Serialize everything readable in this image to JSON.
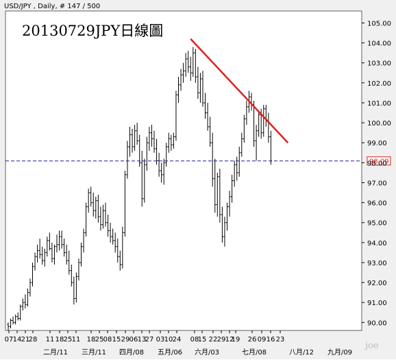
{
  "header": {
    "symbol_info": "USD/JPY  , Daily, # 147 / 500"
  },
  "chart_data": {
    "type": "ohlc",
    "title": "20130729JPY日線圖",
    "xlabel": "",
    "ylabel": "",
    "ylim": [
      89.6,
      105.6
    ],
    "y_ticks": [
      90.0,
      91.0,
      92.0,
      93.0,
      94.0,
      95.0,
      96.0,
      97.0,
      98.0,
      99.0,
      100.0,
      101.0,
      102.0,
      103.0,
      104.0,
      105.0
    ],
    "y_tick_labels": [
      "90.00",
      "91.00",
      "92.00",
      "93.00",
      "94.00",
      "95.00",
      "96.00",
      "97.00",
      "98.00",
      "99.00",
      "100.00",
      "101.00",
      "102.00",
      "103.00",
      "104.00",
      "105.00"
    ],
    "date_labels": [
      "07",
      "14",
      "21",
      "28",
      "11",
      "18",
      "25",
      "11",
      "18",
      "25",
      "08",
      "15",
      "29",
      "06",
      "13",
      "27",
      "03",
      "10",
      "24",
      "08",
      "15",
      "22",
      "29",
      "12",
      "19",
      "26",
      "09",
      "16",
      "23"
    ],
    "month_labels": [
      "二月/11",
      "三月/11",
      "四月/08",
      "五月/06",
      "六月/03",
      "七月/08",
      "八月/12",
      "九月/09"
    ],
    "current_price": 98.09,
    "current_price_label": "98.09",
    "gridlines": false,
    "series": [
      {
        "values": [
          [
            89.9,
            90.0,
            89.6,
            89.8
          ],
          [
            89.8,
            90.2,
            89.7,
            90.1
          ],
          [
            90.1,
            90.3,
            89.9,
            90.0
          ],
          [
            90.0,
            90.4,
            89.9,
            90.3
          ],
          [
            90.3,
            90.5,
            90.1,
            90.2
          ],
          [
            90.2,
            90.9,
            90.1,
            90.8
          ],
          [
            90.8,
            91.2,
            90.6,
            91.0
          ],
          [
            91.0,
            91.4,
            90.7,
            90.9
          ],
          [
            90.9,
            91.7,
            90.8,
            91.5
          ],
          [
            91.5,
            92.2,
            91.3,
            92.0
          ],
          [
            92.0,
            93.0,
            91.8,
            92.8
          ],
          [
            92.8,
            93.5,
            92.6,
            93.3
          ],
          [
            93.3,
            93.9,
            93.0,
            93.6
          ],
          [
            93.6,
            94.2,
            93.2,
            93.4
          ],
          [
            93.4,
            93.8,
            92.9,
            93.1
          ],
          [
            93.1,
            93.7,
            92.8,
            93.5
          ],
          [
            93.5,
            94.3,
            93.3,
            94.1
          ],
          [
            94.1,
            94.5,
            93.6,
            93.7
          ],
          [
            93.7,
            94.0,
            93.0,
            93.2
          ],
          [
            93.2,
            93.9,
            92.9,
            93.8
          ],
          [
            93.8,
            94.4,
            93.5,
            93.9
          ],
          [
            93.9,
            94.6,
            93.6,
            94.3
          ],
          [
            94.3,
            94.6,
            93.7,
            93.9
          ],
          [
            93.9,
            94.2,
            93.3,
            93.5
          ],
          [
            93.5,
            93.9,
            92.9,
            93.1
          ],
          [
            93.1,
            93.6,
            92.4,
            92.6
          ],
          [
            92.6,
            92.9,
            91.8,
            92.0
          ],
          [
            92.0,
            92.3,
            90.9,
            91.2
          ],
          [
            91.2,
            92.5,
            91.0,
            92.3
          ],
          [
            92.3,
            93.2,
            92.1,
            93.0
          ],
          [
            93.0,
            94.0,
            92.8,
            93.8
          ],
          [
            93.8,
            94.7,
            93.5,
            94.5
          ],
          [
            94.5,
            96.0,
            94.3,
            95.8
          ],
          [
            95.8,
            96.7,
            95.5,
            96.5
          ],
          [
            96.5,
            96.8,
            95.8,
            96.0
          ],
          [
            96.0,
            96.5,
            95.3,
            95.6
          ],
          [
            95.6,
            96.3,
            95.2,
            96.1
          ],
          [
            96.1,
            96.4,
            95.0,
            95.3
          ],
          [
            95.3,
            95.8,
            94.6,
            94.9
          ],
          [
            94.9,
            95.9,
            94.7,
            95.6
          ],
          [
            95.6,
            96.0,
            94.8,
            95.0
          ],
          [
            95.0,
            95.4,
            94.3,
            94.6
          ],
          [
            94.6,
            95.0,
            94.0,
            94.3
          ],
          [
            94.3,
            94.7,
            93.9,
            94.1
          ],
          [
            94.1,
            94.5,
            93.5,
            93.8
          ],
          [
            93.8,
            94.2,
            93.0,
            93.3
          ],
          [
            93.3,
            93.6,
            92.6,
            92.9
          ],
          [
            92.9,
            94.8,
            92.7,
            94.5
          ],
          [
            94.5,
            97.6,
            94.3,
            97.4
          ],
          [
            97.4,
            99.1,
            97.2,
            98.8
          ],
          [
            98.8,
            99.8,
            98.3,
            99.4
          ],
          [
            99.4,
            99.7,
            98.5,
            98.8
          ],
          [
            98.8,
            99.9,
            98.6,
            99.6
          ],
          [
            99.6,
            100.0,
            98.9,
            99.1
          ],
          [
            99.1,
            99.4,
            97.8,
            98.0
          ],
          [
            98.0,
            98.6,
            95.8,
            96.2
          ],
          [
            96.2,
            98.2,
            96.0,
            97.9
          ],
          [
            97.9,
            99.3,
            97.6,
            99.0
          ],
          [
            99.0,
            99.8,
            98.6,
            99.5
          ],
          [
            99.5,
            99.9,
            98.8,
            99.2
          ],
          [
            99.2,
            99.6,
            98.5,
            98.7
          ],
          [
            98.7,
            99.2,
            97.9,
            98.1
          ],
          [
            98.1,
            98.5,
            97.3,
            97.6
          ],
          [
            97.6,
            98.0,
            97.0,
            97.4
          ],
          [
            97.4,
            98.2,
            96.9,
            98.0
          ],
          [
            98.0,
            99.0,
            97.8,
            98.8
          ],
          [
            98.8,
            99.5,
            98.5,
            99.2
          ],
          [
            99.2,
            99.4,
            98.6,
            98.9
          ],
          [
            98.9,
            99.5,
            98.7,
            99.3
          ],
          [
            99.3,
            101.6,
            99.1,
            101.4
          ],
          [
            101.4,
            102.3,
            101.0,
            101.9
          ],
          [
            101.9,
            102.7,
            101.6,
            102.4
          ],
          [
            102.4,
            103.0,
            102.0,
            102.6
          ],
          [
            102.6,
            103.5,
            102.3,
            103.2
          ],
          [
            103.2,
            103.6,
            102.5,
            102.8
          ],
          [
            102.8,
            103.3,
            102.1,
            102.5
          ],
          [
            102.5,
            103.8,
            102.3,
            103.5
          ],
          [
            103.5,
            103.7,
            102.0,
            102.3
          ],
          [
            102.3,
            102.8,
            101.2,
            101.5
          ],
          [
            101.5,
            102.5,
            101.0,
            102.2
          ],
          [
            102.2,
            102.6,
            100.8,
            101.0
          ],
          [
            101.0,
            101.5,
            100.2,
            100.5
          ],
          [
            100.5,
            101.0,
            99.6,
            99.8
          ],
          [
            99.8,
            100.3,
            98.8,
            99.0
          ],
          [
            99.0,
            99.5,
            96.8,
            97.2
          ],
          [
            97.2,
            98.2,
            95.5,
            95.9
          ],
          [
            95.9,
            97.5,
            95.3,
            97.3
          ],
          [
            97.3,
            97.7,
            95.0,
            95.4
          ],
          [
            95.4,
            95.8,
            94.0,
            94.3
          ],
          [
            94.3,
            95.3,
            93.8,
            95.0
          ],
          [
            95.0,
            96.0,
            94.6,
            95.8
          ],
          [
            95.8,
            96.6,
            95.3,
            96.3
          ],
          [
            96.3,
            97.4,
            96.0,
            97.1
          ],
          [
            97.1,
            98.1,
            96.8,
            97.9
          ],
          [
            97.9,
            98.3,
            97.1,
            97.5
          ],
          [
            97.5,
            98.8,
            97.3,
            98.5
          ],
          [
            98.5,
            99.5,
            98.3,
            99.2
          ],
          [
            99.2,
            100.4,
            99.0,
            100.2
          ],
          [
            100.2,
            101.1,
            99.9,
            100.8
          ],
          [
            100.8,
            101.6,
            100.5,
            101.3
          ],
          [
            101.3,
            101.5,
            100.6,
            100.9
          ],
          [
            100.9,
            101.1,
            98.8,
            99.1
          ],
          [
            99.1,
            99.9,
            98.1,
            99.6
          ],
          [
            99.6,
            100.6,
            99.3,
            100.4
          ],
          [
            100.4,
            100.7,
            99.2,
            99.5
          ],
          [
            99.5,
            100.9,
            99.3,
            100.7
          ],
          [
            100.7,
            100.9,
            99.8,
            100.1
          ],
          [
            100.1,
            100.5,
            99.0,
            99.3
          ],
          [
            99.3,
            99.6,
            97.9,
            98.1
          ]
        ]
      }
    ],
    "trendline": {
      "start": [
        75,
        104.2
      ],
      "end": [
        115,
        99.0
      ]
    }
  }
}
